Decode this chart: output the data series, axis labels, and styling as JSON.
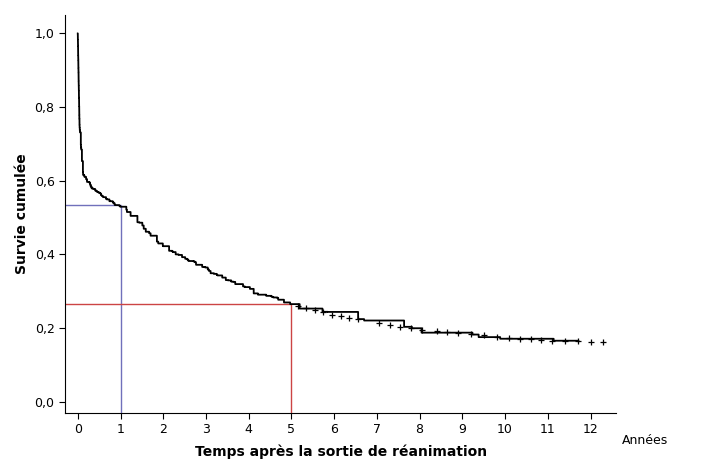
{
  "title": "",
  "xlabel": "Temps après la sortie de réanimation",
  "ylabel": "Survie cumulée",
  "xlabel_right": "Années",
  "xlim": [
    -0.3,
    12.6
  ],
  "ylim": [
    -0.03,
    1.05
  ],
  "xticks": [
    0,
    1,
    2,
    3,
    4,
    5,
    6,
    7,
    8,
    9,
    10,
    11,
    12
  ],
  "yticks": [
    0.0,
    0.2,
    0.4,
    0.6,
    0.8,
    1.0
  ],
  "ytick_labels": [
    "0,0",
    "0,2",
    "0,4",
    "0,6",
    "0,8",
    "1,0"
  ],
  "blue_vline_x": 1.0,
  "blue_hline_y": 0.535,
  "red_vline_x": 5.0,
  "red_hline_y": 0.265,
  "line_color": "#000000",
  "blue_line_color": "#7070bb",
  "red_line_color": "#cc4444",
  "background_color": "#ffffff",
  "curve_lw": 1.3,
  "ref_line_lw": 1.0,
  "censoring_markersize": 4,
  "censoring_markeredgewidth": 0.9
}
